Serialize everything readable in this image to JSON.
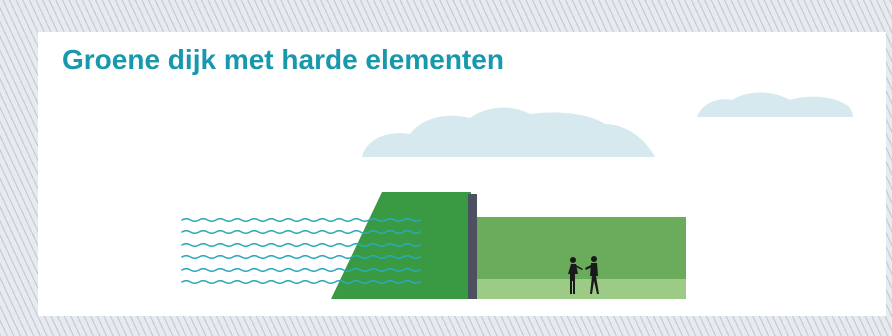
{
  "title": "Groene dijk met harde elementen",
  "colors": {
    "title": "#1798ad",
    "cloud": "#d6e9ee",
    "water": "#2aa9b8",
    "dike_slope": "#3a9a44",
    "wall": "#4c5060",
    "hinterland": "#6aac5c",
    "hinterland_strip": "#9ccb86",
    "people": "#1a1a1a"
  },
  "icons": {
    "clouds": "cloud-icon",
    "water": "water-waves-icon",
    "people": "people-icon"
  }
}
